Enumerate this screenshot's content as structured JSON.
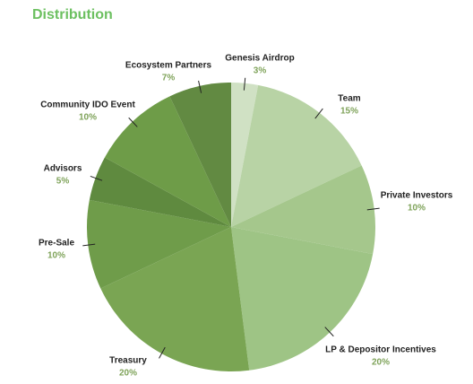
{
  "chart_data": {
    "type": "pie",
    "title": "Distribution",
    "categories": [
      "Genesis Airdrop",
      "Team",
      "Private Investors",
      "LP & Depositor Incentives",
      "Treasury",
      "Pre-Sale",
      "Advisors",
      "Community IDO Event",
      "Ecosystem Partners"
    ],
    "values": [
      3,
      15,
      10,
      20,
      20,
      10,
      5,
      10,
      7
    ],
    "value_labels": [
      "3%",
      "15%",
      "10%",
      "20%",
      "20%",
      "10%",
      "5%",
      "10%",
      "7%"
    ],
    "colors": [
      "#d0e1c4",
      "#b8d3a5",
      "#a5c78c",
      "#9ec485",
      "#7aa553",
      "#6f9c4a",
      "#5f8a3f",
      "#6e9c48",
      "#628a42"
    ]
  }
}
